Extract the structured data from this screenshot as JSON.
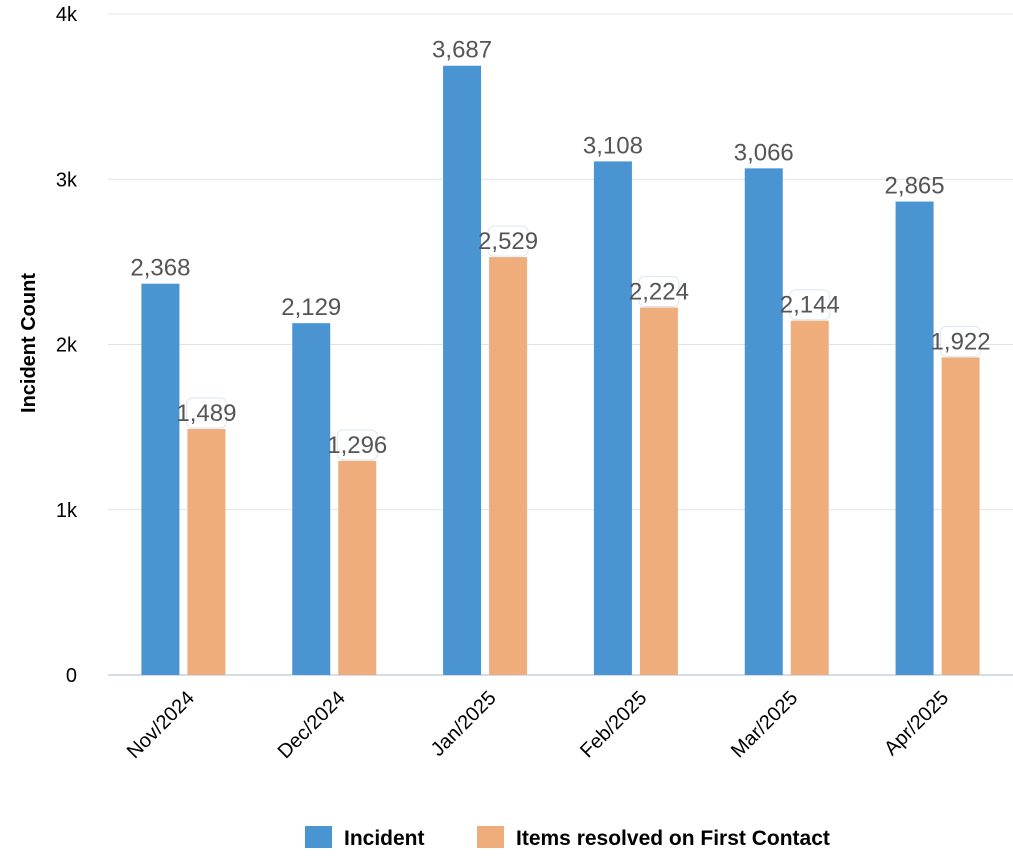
{
  "chart_data": {
    "type": "bar",
    "title": "",
    "xlabel": "",
    "ylabel": "Incident Count",
    "ylim": [
      0,
      4000
    ],
    "yticks": [
      0,
      1000,
      2000,
      3000,
      4000
    ],
    "ytick_labels": [
      "0",
      "1k",
      "2k",
      "3k",
      "4k"
    ],
    "categories": [
      "Nov/2024",
      "Dec/2024",
      "Jan/2025",
      "Feb/2025",
      "Mar/2025",
      "Apr/2025"
    ],
    "series": [
      {
        "name": "Incident",
        "color": "#4a94d1",
        "values": [
          2368,
          2129,
          3687,
          3108,
          3066,
          2865
        ],
        "labels": [
          "2,368",
          "2,129",
          "3,687",
          "3,108",
          "3,066",
          "2,865"
        ]
      },
      {
        "name": "Items resolved on First Contact",
        "color": "#f0ad7c",
        "values": [
          1489,
          1296,
          2529,
          2224,
          2144,
          1922
        ],
        "labels": [
          "1,489",
          "1,296",
          "2,529",
          "2,224",
          "2,144",
          "1,922"
        ]
      }
    ],
    "grid": true,
    "legend": "bottom-center"
  }
}
